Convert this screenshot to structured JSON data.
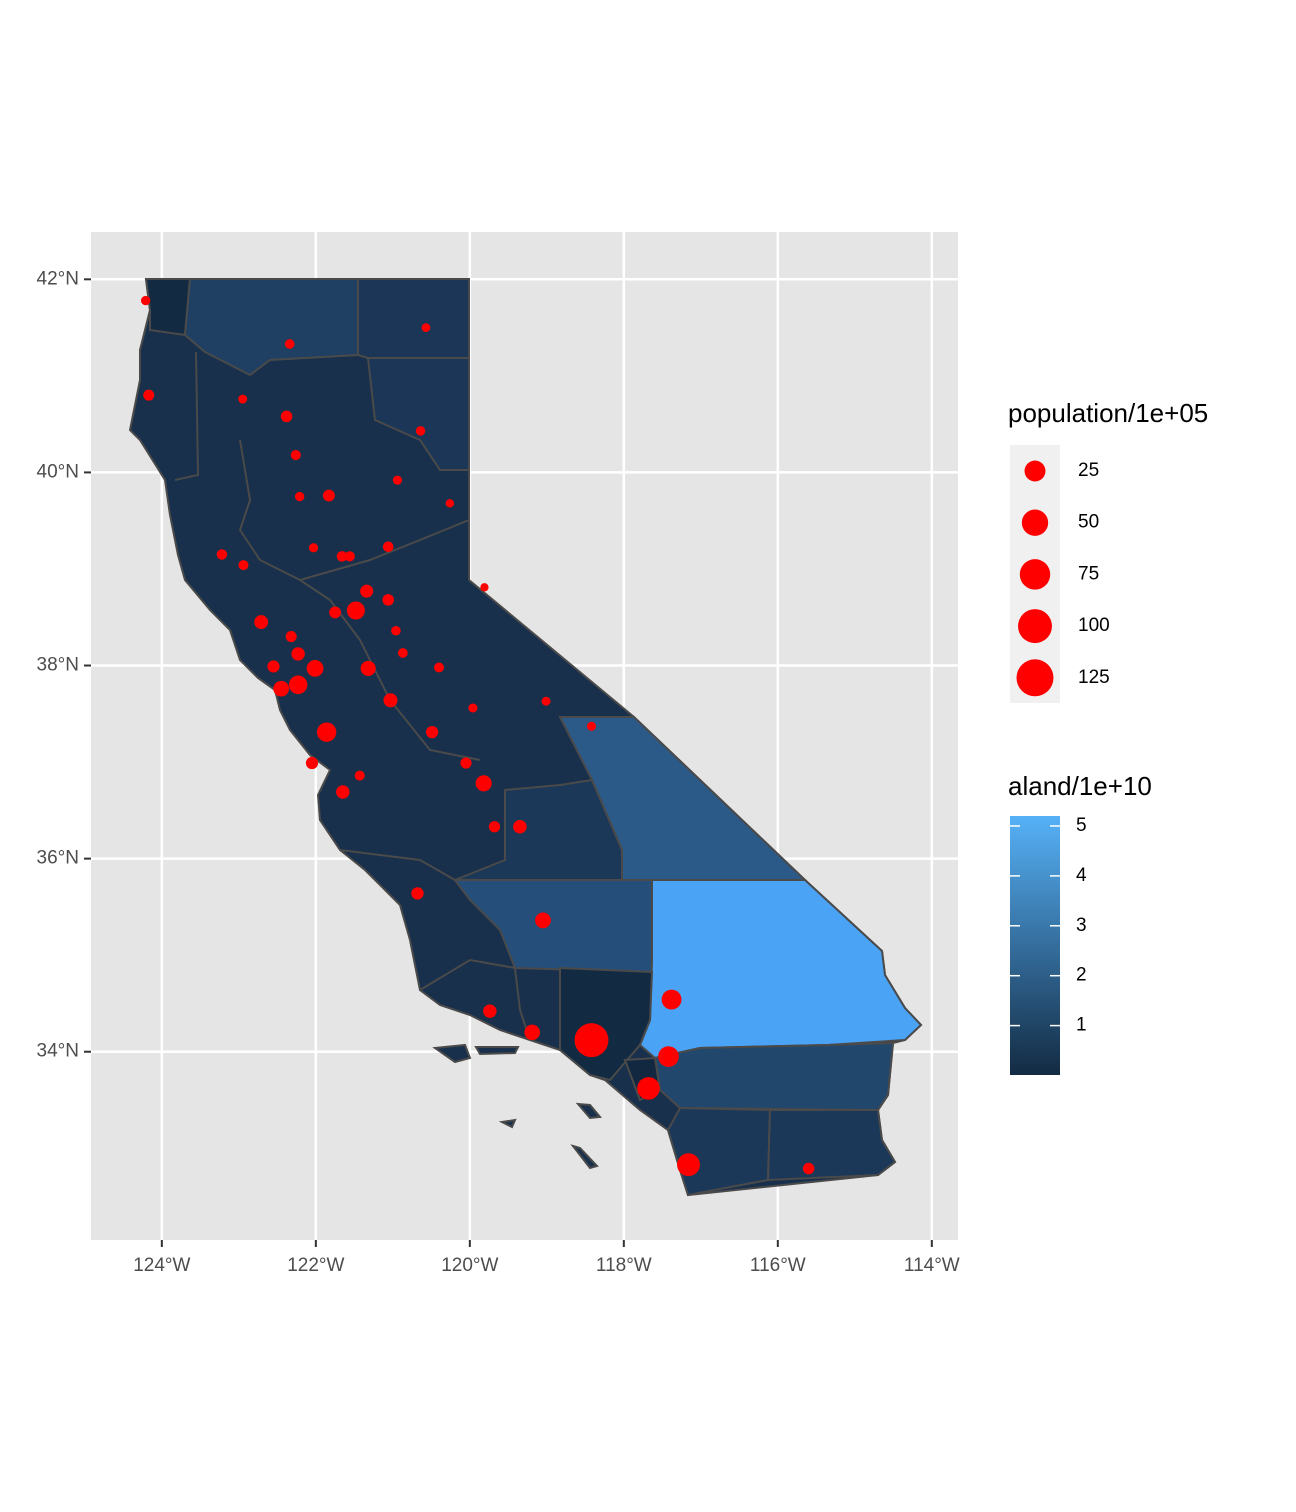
{
  "chart_data": {
    "type": "scatter",
    "x": [
      -124.21,
      -124.17,
      -122.34,
      -120.57,
      -122.95,
      -122.38,
      -120.64,
      -122.26,
      -120.94,
      -122.21,
      -121.83,
      -120.26,
      -123.22,
      -122.03,
      -121.66,
      -121.56,
      -121.06,
      -122.94,
      -119.81,
      -121.34,
      -121.06,
      -121.75,
      -121.48,
      -122.71,
      -120.96,
      -122.32,
      -120.87,
      -122.23,
      -122.55,
      -122.01,
      -121.32,
      -120.4,
      -122.45,
      -122.23,
      -119.01,
      -121.03,
      -118.42,
      -119.96,
      -120.49,
      -121.86,
      -122.05,
      -120.05,
      -121.43,
      -119.82,
      -121.65,
      -119.68,
      -119.35,
      -120.68,
      -119.05,
      -117.38,
      -119.74,
      -119.19,
      -118.42,
      -117.42,
      -117.68,
      -117.16,
      -115.6
    ],
    "y": [
      41.78,
      40.8,
      41.33,
      41.5,
      40.76,
      40.58,
      40.43,
      40.18,
      39.92,
      39.75,
      39.76,
      39.68,
      39.15,
      39.22,
      39.13,
      39.13,
      39.23,
      39.04,
      38.81,
      38.77,
      38.68,
      38.55,
      38.57,
      38.45,
      38.36,
      38.3,
      38.13,
      38.12,
      37.99,
      37.97,
      37.97,
      37.98,
      37.76,
      37.8,
      37.63,
      37.64,
      37.37,
      37.56,
      37.31,
      37.31,
      36.99,
      36.99,
      36.86,
      36.78,
      36.69,
      36.33,
      36.33,
      35.64,
      35.36,
      34.54,
      34.42,
      34.2,
      34.12,
      33.95,
      33.62,
      32.83,
      32.79
    ],
    "sizes": [
      0.28,
      1.35,
      0.44,
      0.09,
      0.13,
      1.8,
      0.31,
      0.64,
      0.19,
      0.28,
      2.2,
      0.03,
      0.88,
      0.21,
      0.96,
      0.75,
      0.99,
      0.64,
      0.01,
      3.8,
      1.9,
      2.2,
      15,
      5,
      0.38,
      1.4,
      0.45,
      4.4,
      2.6,
      11.5,
      7.5,
      0.55,
      8.8,
      16.5,
      0.14,
      5.4,
      0.18,
      0.18,
      2.7,
      19.3,
      2.7,
      1.5,
      0.6,
      9.9,
      4.3,
      1.5,
      4.6,
      2.8,
      8.9,
      21,
      4.4,
      8.4,
      100,
      24,
      31.7,
      33,
      1.8
    ],
    "color": "#ff0000",
    "xlim": [
      -124.92,
      -113.66
    ],
    "ylim": [
      32.05,
      42.49
    ],
    "xticks": [
      {
        "value": -124,
        "label": "124°W"
      },
      {
        "value": -122,
        "label": "122°W"
      },
      {
        "value": -120,
        "label": "120°W"
      },
      {
        "value": -118,
        "label": "118°W"
      },
      {
        "value": -116,
        "label": "116°W"
      },
      {
        "value": -114,
        "label": "114°W"
      }
    ],
    "yticks": [
      {
        "value": 34,
        "label": "34°N"
      },
      {
        "value": 36,
        "label": "36°N"
      },
      {
        "value": 38,
        "label": "38°N"
      },
      {
        "value": 40,
        "label": "40°N"
      },
      {
        "value": 42,
        "label": "42°N"
      }
    ],
    "grid": true,
    "size_legend": {
      "title": "population/1e+05",
      "values": [
        25,
        50,
        75,
        100,
        125
      ]
    },
    "colorbar": {
      "title": "aland/1e+10",
      "lim": [
        0.01,
        5.2
      ],
      "ticks": [
        1,
        2,
        3,
        4,
        5
      ],
      "low": "#132B43",
      "high": "#56B1F7"
    }
  }
}
